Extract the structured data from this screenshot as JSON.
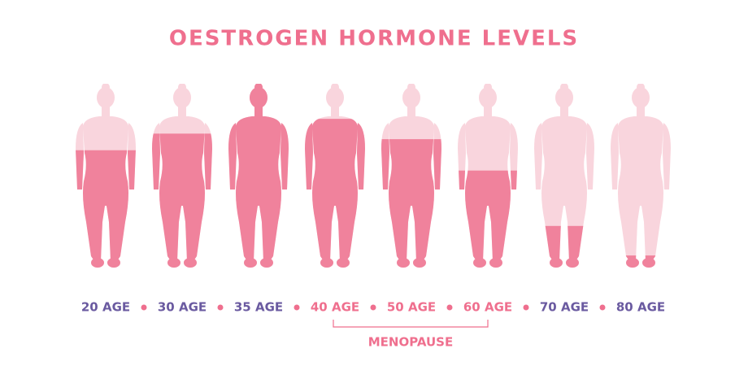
{
  "title": "OESTROGEN HORMONE LEVELS",
  "groups": [
    {
      "figures": [
        {
          "age": "20 AGE",
          "level": 64
        },
        {
          "age": "30 AGE",
          "level": 73
        },
        {
          "age": "35 AGE",
          "level": 100
        }
      ]
    },
    {
      "label": "MENOPAUSE",
      "figures": [
        {
          "age": "40 AGE",
          "level": 81
        },
        {
          "age": "50 AGE",
          "level": 70
        },
        {
          "age": "60 AGE",
          "level": 53
        }
      ]
    },
    {
      "figures": [
        {
          "age": "70 AGE",
          "level": 23
        },
        {
          "age": "80 AGE",
          "level": 7
        }
      ]
    }
  ]
}
